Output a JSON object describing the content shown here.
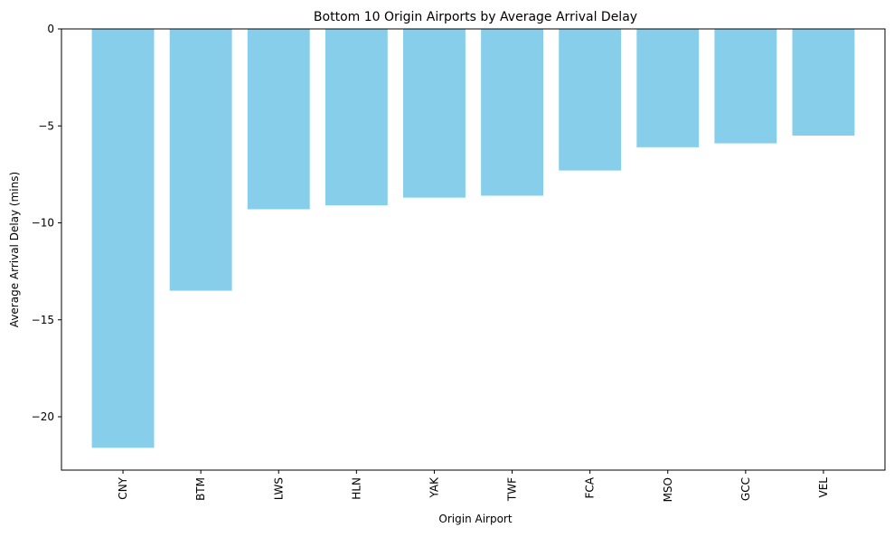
{
  "chart_data": {
    "type": "bar",
    "title": "Bottom 10 Origin Airports by Average Arrival Delay",
    "xlabel": "Origin Airport",
    "ylabel": "Average Arrival Delay (mins)",
    "categories": [
      "CNY",
      "BTM",
      "LWS",
      "HLN",
      "YAK",
      "TWF",
      "FCA",
      "MSO",
      "GCC",
      "VEL"
    ],
    "values": [
      -21.6,
      -13.5,
      -9.3,
      -9.1,
      -8.7,
      -8.6,
      -7.3,
      -6.1,
      -5.9,
      -5.5
    ],
    "ylim": [
      -22.75,
      0
    ],
    "yticks": [
      0,
      -5,
      -10,
      -15,
      -20
    ],
    "ytick_labels": [
      "0",
      "−5",
      "−10",
      "−15",
      "−20"
    ],
    "bar_color": "#87ceeb",
    "grid": false,
    "legend": "none"
  }
}
